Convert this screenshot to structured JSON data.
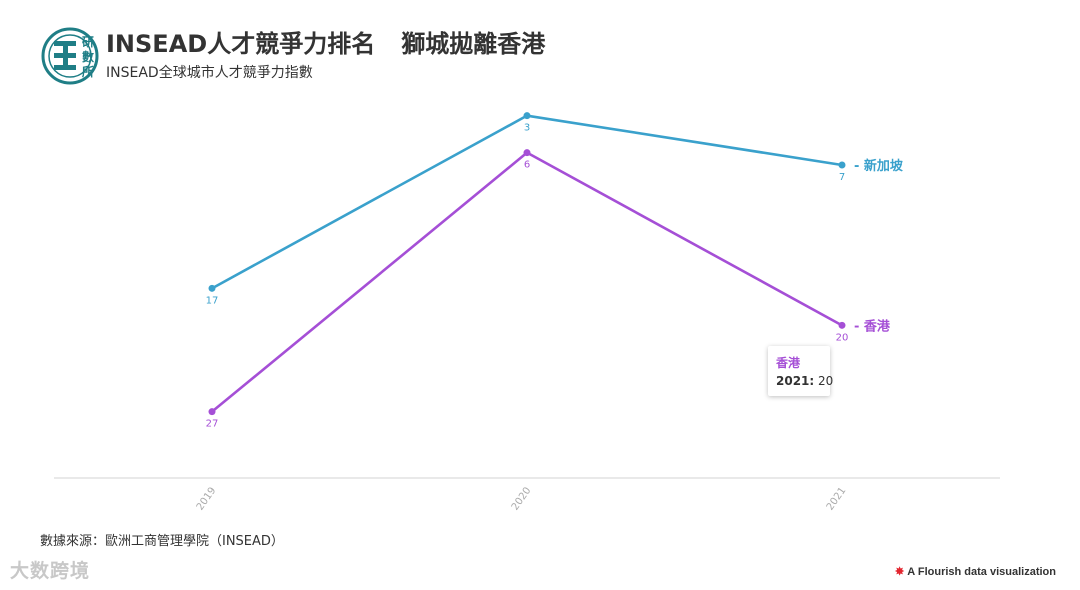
{
  "header": {
    "title_main": "INSEAD人才競爭力排名",
    "title_secondary": "獅城拋離香港",
    "subtitle": "INSEAD全球城市人才競爭力指數",
    "logo_text": [
      "研",
      "數",
      "所"
    ]
  },
  "footer": {
    "source": "數據來源：歐洲工商管理學院（INSEAD）",
    "watermark": "大数跨境",
    "flourish_credit": "A Flourish data visualization"
  },
  "tooltip": {
    "series": "香港",
    "year": "2021:",
    "value": "20"
  },
  "colors": {
    "singapore": "#3aa1cc",
    "hongkong": "#a54fd6",
    "logo": "#1f7e86",
    "axis": "#e2e2e2",
    "tick": "#aaaaaa"
  },
  "chart_data": {
    "type": "line",
    "x": [
      "2019",
      "2020",
      "2021"
    ],
    "y_reversed": true,
    "ylim": [
      34,
      1
    ],
    "series": [
      {
        "name": "新加坡",
        "values": [
          17,
          3,
          7
        ],
        "color": "#3aa1cc"
      },
      {
        "name": "香港",
        "values": [
          27,
          6,
          20
        ],
        "color": "#a54fd6"
      }
    ]
  }
}
